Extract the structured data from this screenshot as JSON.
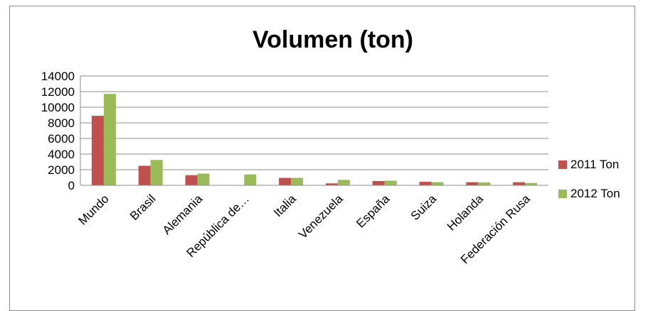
{
  "chart_data": {
    "type": "bar",
    "title": "Volumen (ton)",
    "xlabel": "",
    "ylabel": "",
    "categories": [
      "Mundo",
      "Brasil",
      "Alemania",
      "República de…",
      "Italia",
      "Venezuela",
      "España",
      "Suiza",
      "Holanda",
      "Federación  Rusa"
    ],
    "series": [
      {
        "name": "2011 Ton",
        "color": "#c0504d",
        "values": [
          8900,
          2500,
          1300,
          0,
          950,
          250,
          550,
          450,
          400,
          400
        ]
      },
      {
        "name": "2012 Ton",
        "color": "#9bbb59",
        "values": [
          11700,
          3250,
          1500,
          1400,
          950,
          700,
          600,
          400,
          380,
          300
        ]
      }
    ],
    "ylim": [
      0,
      14000
    ],
    "yticks": [
      "0",
      "2000",
      "4000",
      "6000",
      "8000",
      "10000",
      "12000",
      "14000"
    ],
    "grid": true,
    "legend_position": "right"
  }
}
